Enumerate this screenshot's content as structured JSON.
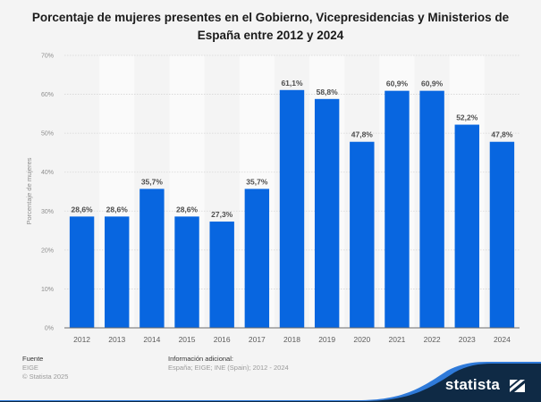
{
  "title": "Porcentaje de mujeres presentes en el Gobierno, Vicepresidencias y Ministerios de España entre 2012 y 2024",
  "title_lines": [
    "Porcentaje de mujeres presentes en el Gobierno, Vicepresidencias y Ministerios de",
    "España entre 2012 y 2024"
  ],
  "colors": {
    "bar": "#0866e0",
    "band": "#fafafa",
    "background": "#f4f4f4",
    "brand_dark": "#0f2a45",
    "brand_blue": "#2f7ad9"
  },
  "chart_data": {
    "type": "bar",
    "title": "Porcentaje de mujeres presentes en el Gobierno, Vicepresidencias y Ministerios de España entre 2012 y 2024",
    "xlabel": "",
    "ylabel": "Porcentaje de mujeres",
    "categories": [
      "2012",
      "2013",
      "2014",
      "2015",
      "2016",
      "2017",
      "2018",
      "2019",
      "2020",
      "2021",
      "2022",
      "2023",
      "2024"
    ],
    "values": [
      28.6,
      28.6,
      35.7,
      28.6,
      27.3,
      35.7,
      61.1,
      58.8,
      47.8,
      60.9,
      60.9,
      52.2,
      47.8
    ],
    "value_labels": [
      "28,6%",
      "28,6%",
      "35,7%",
      "28,6%",
      "27,3%",
      "35,7%",
      "61,1%",
      "58,8%",
      "47,8%",
      "60,9%",
      "60,9%",
      "52,2%",
      "47,8%"
    ],
    "ylim": [
      0,
      70
    ],
    "yticks": [
      0,
      10,
      20,
      30,
      40,
      50,
      60,
      70
    ],
    "ytick_labels": [
      "0%",
      "10%",
      "20%",
      "30%",
      "40%",
      "50%",
      "60%",
      "70%"
    ],
    "grid": true,
    "legend": "none"
  },
  "footer": {
    "source_heading": "Fuente",
    "source": "EIGE",
    "copyright": "© Statista 2025",
    "info_heading": "Información adicional:",
    "info": "España; EIGE; INE (Spain); 2012 - 2024"
  },
  "brand": {
    "name": "statista",
    "logo_icon": "statista-logo-icon"
  }
}
